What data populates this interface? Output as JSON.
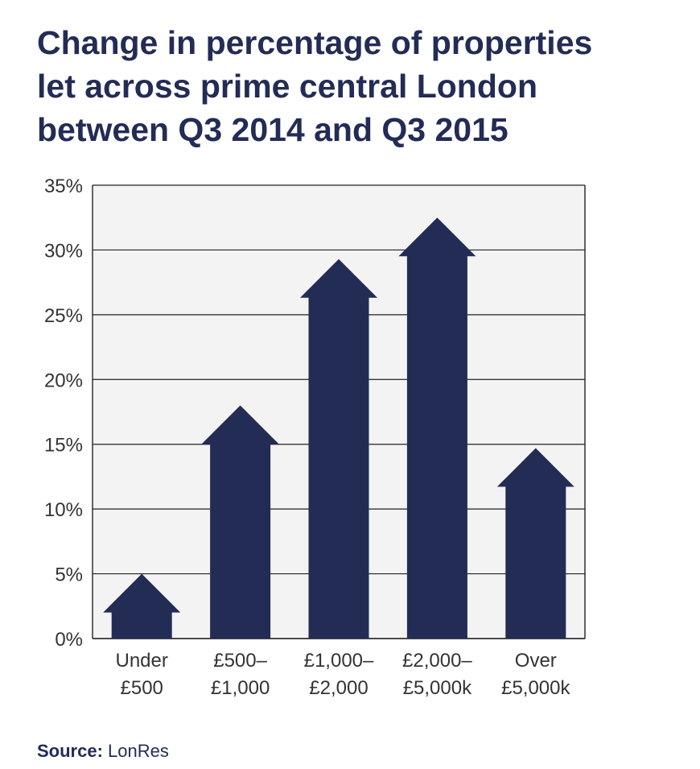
{
  "title_lines": [
    "Change in percentage of properties",
    "let across prime central London",
    "between Q3 2014 and Q3 2015"
  ],
  "source": {
    "label": "Source:",
    "value": "LonRes"
  },
  "colors": {
    "bar": "#232c55",
    "plot_bg": "#f3f3f3",
    "grid": "#222222",
    "text": "#333333",
    "title": "#232c55"
  },
  "chart_data": {
    "type": "bar",
    "title": "Change in percentage of properties let across prime central London between Q3 2014 and Q3 2015",
    "categories": [
      [
        "Under",
        "£500"
      ],
      [
        "£500–",
        "£1,000"
      ],
      [
        "£1,000–",
        "£2,000"
      ],
      [
        "£2,000–",
        "£5,000k"
      ],
      [
        "Over",
        "£5,000k"
      ]
    ],
    "values": [
      5,
      18,
      29.3,
      32.5,
      14.7
    ],
    "ylim": [
      0,
      35
    ],
    "yticks": [
      "0%",
      "5%",
      "10%",
      "15%",
      "20%",
      "25%",
      "30%",
      "35%"
    ],
    "ytick_values": [
      0,
      5,
      10,
      15,
      20,
      25,
      30,
      35
    ],
    "grid": true,
    "mark_style": "arrow"
  }
}
